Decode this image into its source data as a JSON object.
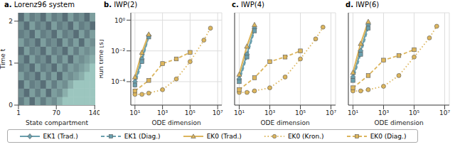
{
  "chart_data": [
    {
      "type": "heatmap",
      "title": "a. Lorenz96 system",
      "xlabel": "State compartment",
      "ylabel": "Time t",
      "xlim": [
        1,
        141
      ],
      "ylim": [
        0,
        2.2
      ],
      "xticks": [
        1,
        70,
        140
      ],
      "yticks": [
        0,
        1,
        2
      ],
      "x": [
        6,
        16,
        26,
        36,
        46,
        56,
        66,
        76,
        86,
        96,
        106,
        116,
        126,
        136
      ],
      "y": [
        0.1,
        0.3,
        0.5,
        0.7,
        0.9,
        1.1,
        1.3,
        1.5,
        1.7,
        1.9,
        2.1
      ],
      "values": [
        [
          0.4,
          0.6,
          0.3,
          0.6,
          0.4,
          0.6,
          0.5,
          0.7,
          0.85,
          0.85,
          0.85,
          0.85,
          0.85,
          0.85
        ],
        [
          0.5,
          0.3,
          0.6,
          0.4,
          0.6,
          0.3,
          0.6,
          0.5,
          0.7,
          0.85,
          0.85,
          0.85,
          0.85,
          0.85
        ],
        [
          0.3,
          0.6,
          0.4,
          0.5,
          0.3,
          0.6,
          0.4,
          0.6,
          0.5,
          0.7,
          0.85,
          0.85,
          0.85,
          0.85
        ],
        [
          0.6,
          0.4,
          0.5,
          0.3,
          0.6,
          0.4,
          0.6,
          0.3,
          0.6,
          0.5,
          0.6,
          0.7,
          0.85,
          0.85
        ],
        [
          0.4,
          0.5,
          0.3,
          0.6,
          0.4,
          0.5,
          0.3,
          0.6,
          0.4,
          0.6,
          0.5,
          0.6,
          0.7,
          0.85
        ],
        [
          0.5,
          0.3,
          0.6,
          0.4,
          0.5,
          0.3,
          0.6,
          0.4,
          0.6,
          0.3,
          0.6,
          0.5,
          0.6,
          0.7
        ],
        [
          0.3,
          0.6,
          0.4,
          0.5,
          0.3,
          0.6,
          0.4,
          0.5,
          0.3,
          0.6,
          0.4,
          0.6,
          0.5,
          0.6
        ],
        [
          0.6,
          0.4,
          0.5,
          0.3,
          0.6,
          0.4,
          0.5,
          0.3,
          0.6,
          0.4,
          0.6,
          0.3,
          0.6,
          0.5
        ],
        [
          0.4,
          0.5,
          0.3,
          0.6,
          0.4,
          0.5,
          0.3,
          0.6,
          0.4,
          0.5,
          0.3,
          0.6,
          0.4,
          0.6
        ],
        [
          0.5,
          0.3,
          0.6,
          0.4,
          0.5,
          0.3,
          0.6,
          0.4,
          0.5,
          0.3,
          0.6,
          0.4,
          0.5,
          0.3
        ],
        [
          0.3,
          0.6,
          0.4,
          0.5,
          0.3,
          0.6,
          0.4,
          0.5,
          0.3,
          0.6,
          0.4,
          0.5,
          0.3,
          0.6
        ]
      ]
    },
    {
      "type": "line",
      "title": "b. IWP(2)",
      "xlabel": "ODE dimension",
      "ylabel": "Run time [s]",
      "log": true,
      "grid": true,
      "legend": "bottom",
      "xlim": [
        5,
        20000000
      ],
      "ylim": [
        3e-06,
        3
      ],
      "xticks": [
        {
          "value": 10,
          "label": "10¹"
        },
        {
          "value": 1000,
          "label": "10³"
        },
        {
          "value": 100000,
          "label": "10⁵"
        },
        {
          "value": 10000000,
          "label": "10⁷"
        }
      ],
      "yticks": [
        {
          "value": 0.0001,
          "label": "10⁻⁴"
        },
        {
          "value": 0.01,
          "label": "10⁻²"
        },
        {
          "value": 1,
          "label": "10⁰"
        }
      ],
      "series": [
        {
          "name": "EK1 (Trad.)",
          "color": "#6a9fad",
          "marker": "diamond",
          "line_style": "solid",
          "x": [
            10,
            32,
            100
          ],
          "values": [
            0.0001,
            0.003,
            0.1
          ]
        },
        {
          "name": "EK1 (Diag.)",
          "color": "#6a9fad",
          "marker": "square",
          "line_style": "dashed",
          "x": [
            10,
            32,
            100
          ],
          "values": [
            6e-05,
            0.002,
            0.08
          ]
        },
        {
          "name": "EK0 (Trad.)",
          "color": "#dcb55c",
          "marker": "triangle",
          "line_style": "solid",
          "x": [
            10,
            32,
            100
          ],
          "values": [
            0.0002,
            0.008,
            0.12
          ]
        },
        {
          "name": "EK0 (Kron.)",
          "color": "#dcb55c",
          "marker": "circle",
          "line_style": "dotted",
          "x": [
            10,
            32,
            100,
            1000,
            10000,
            100000,
            1000000,
            3000000
          ],
          "values": [
            1.5e-05,
            1.5e-05,
            1.8e-05,
            3e-05,
            0.00015,
            0.002,
            0.05,
            0.3
          ]
        },
        {
          "name": "EK0 (Diag.)",
          "color": "#dcb55c",
          "marker": "square",
          "line_style": "dashed",
          "x": [
            10,
            100,
            1000,
            10000,
            100000
          ],
          "values": [
            2.5e-05,
            0.00012,
            0.0015,
            0.003,
            0.008
          ]
        }
      ]
    },
    {
      "type": "line",
      "title": "c. IWP(4)",
      "xlabel": "ODE dimension",
      "log": true,
      "grid": true,
      "tick_labels": "x",
      "xlim": [
        5,
        20000000
      ],
      "ylim": [
        3e-06,
        3
      ],
      "xticks": [
        {
          "value": 10,
          "label": "10¹"
        },
        {
          "value": 1000,
          "label": "10³"
        },
        {
          "value": 100000,
          "label": "10⁵"
        },
        {
          "value": 10000000,
          "label": "10⁷"
        }
      ],
      "yticks": [
        0.0001,
        0.01,
        1
      ],
      "series": [
        {
          "name": "EK1 (Trad.)",
          "color": "#6a9fad",
          "marker": "diamond",
          "line_style": "solid",
          "x": [
            10,
            32,
            100
          ],
          "values": [
            0.00015,
            0.006,
            0.3
          ]
        },
        {
          "name": "EK1 (Diag.)",
          "color": "#6a9fad",
          "marker": "square",
          "line_style": "dashed",
          "x": [
            10,
            32,
            100
          ],
          "values": [
            0.0001,
            0.004,
            0.2
          ]
        },
        {
          "name": "EK0 (Trad.)",
          "color": "#dcb55c",
          "marker": "triangle",
          "line_style": "solid",
          "x": [
            10,
            32,
            100
          ],
          "values": [
            0.0003,
            0.02,
            0.5
          ]
        },
        {
          "name": "EK0 (Kron.)",
          "color": "#dcb55c",
          "marker": "circle",
          "line_style": "dotted",
          "x": [
            10,
            32,
            100,
            1000,
            10000,
            100000,
            1000000,
            3000000
          ],
          "values": [
            2e-05,
            2e-05,
            2.5e-05,
            4e-05,
            0.0002,
            0.003,
            0.06,
            0.35
          ]
        },
        {
          "name": "EK0 (Diag.)",
          "color": "#dcb55c",
          "marker": "square",
          "line_style": "dashed",
          "x": [
            10,
            100,
            1000,
            10000,
            100000
          ],
          "values": [
            3e-05,
            0.00018,
            0.002,
            0.004,
            0.01
          ]
        }
      ]
    },
    {
      "type": "line",
      "title": "d. IWP(6)",
      "xlabel": "ODE dimension",
      "log": true,
      "grid": true,
      "tick_labels": "x",
      "xlim": [
        5,
        20000000
      ],
      "ylim": [
        3e-06,
        3
      ],
      "xticks": [
        {
          "value": 10,
          "label": "10¹"
        },
        {
          "value": 1000,
          "label": "10³"
        },
        {
          "value": 100000,
          "label": "10⁵"
        },
        {
          "value": 10000000,
          "label": "10⁷"
        }
      ],
      "yticks": [
        0.0001,
        0.01,
        1
      ],
      "series": [
        {
          "name": "EK1 (Trad.)",
          "color": "#6a9fad",
          "marker": "diamond",
          "line_style": "solid",
          "x": [
            10,
            32,
            100
          ],
          "values": [
            0.0002,
            0.01,
            0.5
          ]
        },
        {
          "name": "EK1 (Diag.)",
          "color": "#6a9fad",
          "marker": "square",
          "line_style": "dashed",
          "x": [
            10,
            32,
            100
          ],
          "values": [
            0.00012,
            0.006,
            0.3
          ]
        },
        {
          "name": "EK0 (Trad.)",
          "color": "#dcb55c",
          "marker": "triangle",
          "line_style": "solid",
          "x": [
            10,
            32,
            100
          ],
          "values": [
            0.0004,
            0.03,
            0.8
          ]
        },
        {
          "name": "EK0 (Kron.)",
          "color": "#dcb55c",
          "marker": "circle",
          "line_style": "dotted",
          "x": [
            10,
            32,
            100,
            1000,
            10000,
            100000,
            1000000,
            3000000
          ],
          "values": [
            2.5e-05,
            2.5e-05,
            3e-05,
            5e-05,
            0.00025,
            0.004,
            0.07,
            0.4
          ]
        },
        {
          "name": "EK0 (Diag.)",
          "color": "#dcb55c",
          "marker": "square",
          "line_style": "dashed",
          "x": [
            10,
            100,
            1000,
            10000,
            100000
          ],
          "values": [
            4e-05,
            0.00025,
            0.0025,
            0.005,
            0.012
          ]
        }
      ]
    }
  ]
}
